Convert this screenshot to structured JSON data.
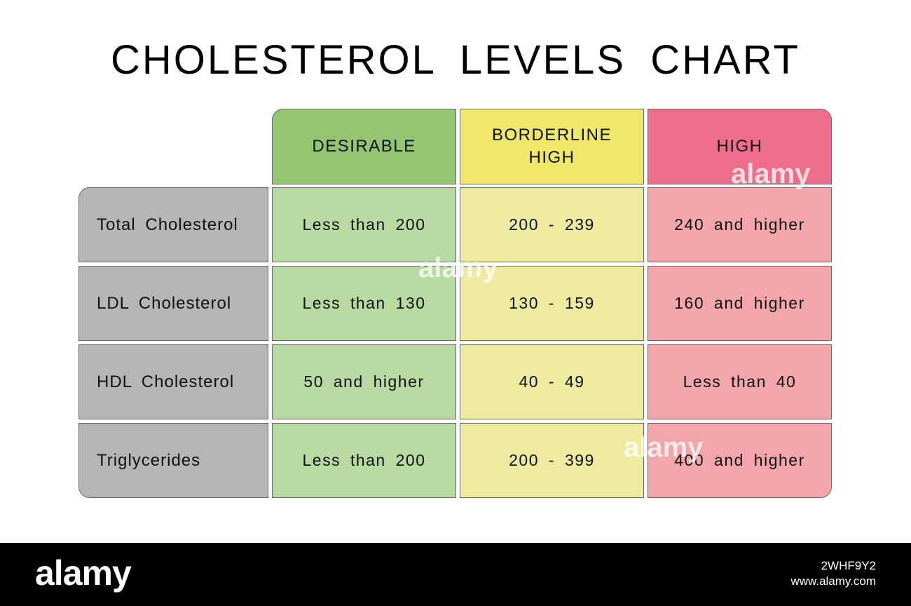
{
  "title": "CHOLESTEROL LEVELS CHART",
  "chart_data": {
    "type": "table",
    "title": "CHOLESTEROL LEVELS CHART",
    "columns": [
      "DESIRABLE",
      "BORDERLINE\nHIGH",
      "HIGH"
    ],
    "rows": [
      {
        "label": "Total Cholesterol",
        "values": [
          "Less than 200",
          "200 - 239",
          "240 and higher"
        ]
      },
      {
        "label": "LDL Cholesterol",
        "values": [
          "Less than 130",
          "130 - 159",
          "160 and higher"
        ]
      },
      {
        "label": "HDL Cholesterol",
        "values": [
          "50 and higher",
          "40 - 49",
          "Less than 40"
        ]
      },
      {
        "label": "Triglycerides",
        "values": [
          "Less than 200",
          "200 - 399",
          "400 and higher"
        ]
      }
    ]
  },
  "colors": {
    "header": [
      "#93c572",
      "#f0e86a",
      "#ee6d8c"
    ],
    "body": [
      "#b8d9a2",
      "#eeeba0",
      "#f2a6ac"
    ],
    "label_bg": "#b5b5b5"
  },
  "footer": {
    "logo": "alamy",
    "image_id": "2WHF9Y2",
    "site": "www.alamy.com"
  },
  "watermark": "alamy"
}
